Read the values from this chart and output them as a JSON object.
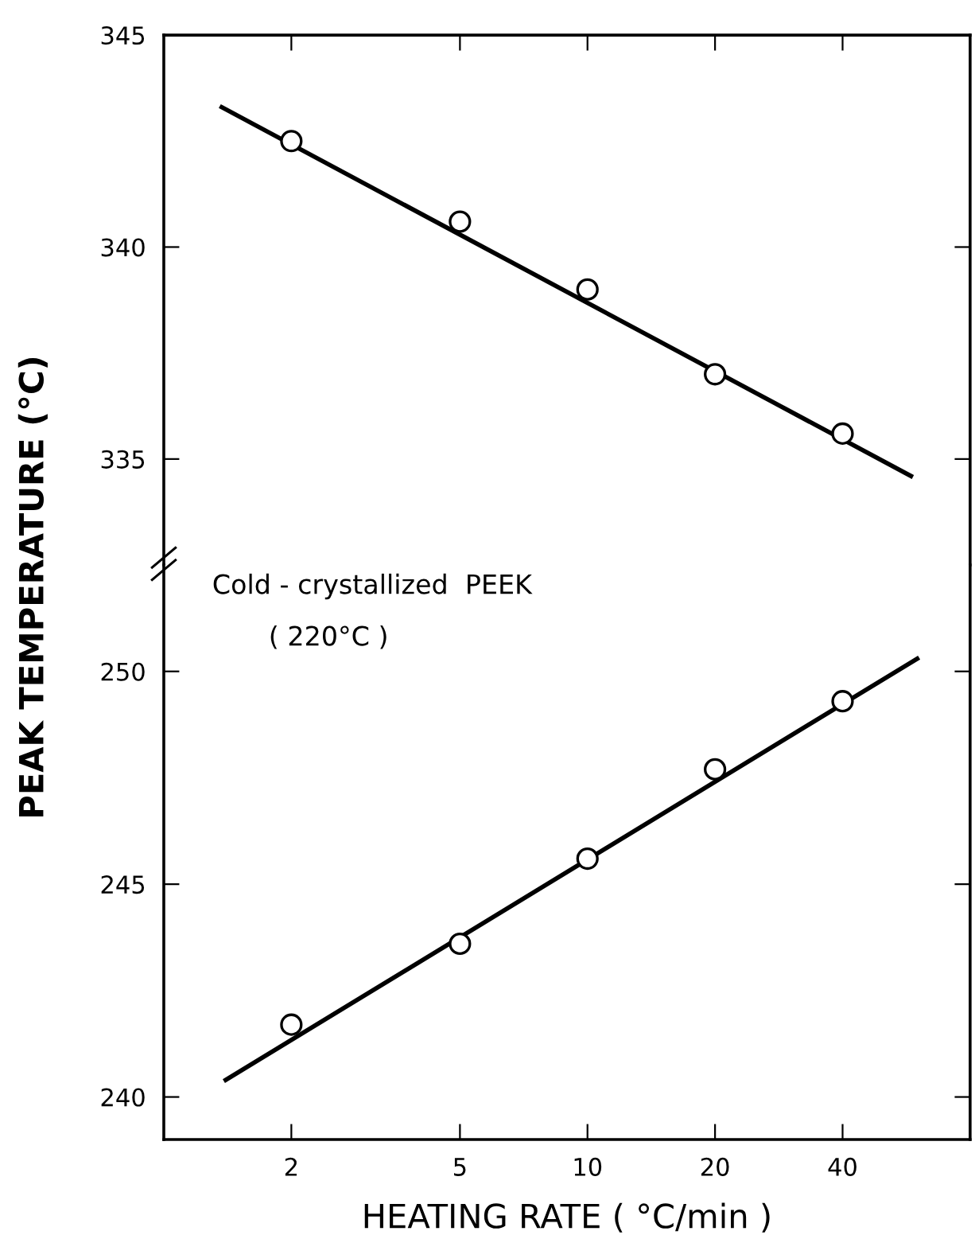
{
  "chart_data": [
    {
      "type": "scatter",
      "log": "x",
      "xlim": [
        1,
        80
      ],
      "ylim": [
        332.5,
        345
      ],
      "xticks": [
        2,
        5,
        10,
        20,
        40
      ],
      "yticks": [
        335,
        340,
        345
      ],
      "tick_labels": "y",
      "series": [
        {
          "type": "line",
          "color": "#000000",
          "marker": "none",
          "line_style": "solid",
          "x": [
            1.37,
            58
          ],
          "values": [
            343.3,
            334.6
          ]
        },
        {
          "color": "#000000",
          "marker": "circle",
          "x": [
            2,
            5,
            10,
            20,
            40
          ],
          "values": [
            342.5,
            340.6,
            339.0,
            337.0,
            335.6
          ]
        }
      ]
    },
    {
      "type": "scatter",
      "log": "x",
      "xlim": [
        1,
        80
      ],
      "ylim": [
        239,
        252.5
      ],
      "xticks": [
        2,
        5,
        10,
        20,
        40
      ],
      "yticks": [
        240,
        245,
        250
      ],
      "xlabel": "HEATING RATE ( °C/min )",
      "ylabel": "PEAK TEMPERATURE (°C)",
      "annotations": [
        "Cold - crystallized  PEEK",
        "( 220°C )"
      ],
      "series": [
        {
          "type": "line",
          "color": "#000000",
          "marker": "none",
          "line_style": "solid",
          "x": [
            1.4,
            60
          ],
          "values": [
            240.4,
            250.3
          ]
        },
        {
          "color": "#000000",
          "marker": "circle",
          "x": [
            2,
            5,
            10,
            20,
            40
          ],
          "values": [
            241.7,
            243.6,
            245.6,
            247.7,
            249.3
          ]
        }
      ]
    }
  ]
}
